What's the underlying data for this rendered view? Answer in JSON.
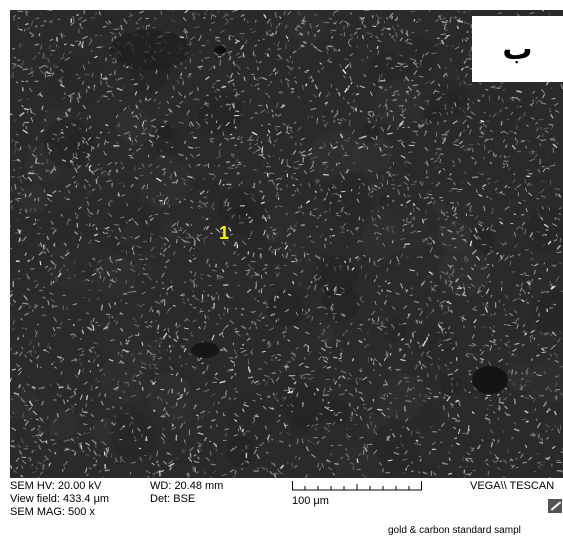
{
  "image": {
    "content": "SEM backscattered electron micrograph of dendritic microstructure",
    "background_color": "#2a2a2a",
    "particle_color": "#e8e8e8"
  },
  "panel_label": "ب",
  "point_marker": "1",
  "marker_color": "#f4f400",
  "metadata": {
    "hv": "SEM HV: 20.00 kV",
    "wd": "WD: 20.48 mm",
    "view_field": "View field: 433.4 μm",
    "det": "Det: BSE",
    "mag": "SEM MAG: 500 x",
    "scale_label": "100 μm",
    "vendor": "VEGA\\\\ TESCAN",
    "sample": "gold & carbon standard sampl"
  }
}
